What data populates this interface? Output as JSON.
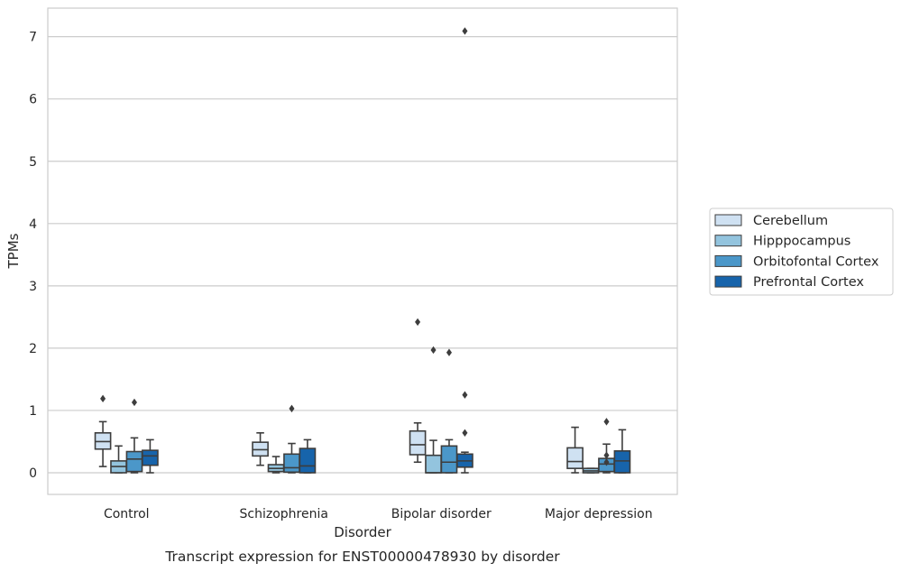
{
  "chart_data": {
    "type": "box",
    "title": "",
    "caption": "Transcript expression for ENST00000478930 by disorder",
    "xlabel": "Disorder",
    "ylabel": "TPMs",
    "ylim": [
      -0.35,
      7.45
    ],
    "yticks": [
      0,
      1,
      2,
      3,
      4,
      5,
      6,
      7
    ],
    "grid": "horizontal",
    "legend_position": "right",
    "categories": [
      "Control",
      "Schizophrenia",
      "Bipolar disorder",
      "Major depression"
    ],
    "series": [
      {
        "name": "Cerebellum",
        "color": "#cfe1f2",
        "boxes": [
          {
            "whisker_low": 0.1,
            "q1": 0.38,
            "median": 0.5,
            "q3": 0.64,
            "whisker_high": 0.82,
            "outliers": [
              1.19
            ]
          },
          {
            "whisker_low": 0.12,
            "q1": 0.27,
            "median": 0.37,
            "q3": 0.49,
            "whisker_high": 0.64,
            "outliers": []
          },
          {
            "whisker_low": 0.17,
            "q1": 0.29,
            "median": 0.45,
            "q3": 0.67,
            "whisker_high": 0.8,
            "outliers": [
              2.42
            ]
          },
          {
            "whisker_low": 0.0,
            "q1": 0.07,
            "median": 0.18,
            "q3": 0.4,
            "whisker_high": 0.73,
            "outliers": []
          }
        ]
      },
      {
        "name": "Hipppocampus",
        "color": "#93c4de",
        "boxes": [
          {
            "whisker_low": 0.0,
            "q1": 0.0,
            "median": 0.1,
            "q3": 0.19,
            "whisker_high": 0.43,
            "outliers": []
          },
          {
            "whisker_low": 0.0,
            "q1": 0.02,
            "median": 0.07,
            "q3": 0.13,
            "whisker_high": 0.26,
            "outliers": []
          },
          {
            "whisker_low": 0.0,
            "q1": 0.0,
            "median": 0.0,
            "q3": 0.28,
            "whisker_high": 0.52,
            "outliers": [
              1.97
            ]
          },
          {
            "whisker_low": 0.0,
            "q1": 0.0,
            "median": 0.03,
            "q3": 0.07,
            "whisker_high": 0.07,
            "outliers": []
          }
        ]
      },
      {
        "name": "Orbitofontal Cortex",
        "color": "#4b97c9",
        "boxes": [
          {
            "whisker_low": 0.0,
            "q1": 0.02,
            "median": 0.22,
            "q3": 0.34,
            "whisker_high": 0.56,
            "outliers": [
              1.13
            ]
          },
          {
            "whisker_low": 0.0,
            "q1": 0.01,
            "median": 0.08,
            "q3": 0.3,
            "whisker_high": 0.47,
            "outliers": [
              1.03
            ]
          },
          {
            "whisker_low": 0.0,
            "q1": 0.0,
            "median": 0.17,
            "q3": 0.43,
            "whisker_high": 0.53,
            "outliers": [
              1.93
            ]
          },
          {
            "whisker_low": 0.0,
            "q1": 0.02,
            "median": 0.14,
            "q3": 0.23,
            "whisker_high": 0.46,
            "outliers": [
              0.28,
              0.17,
              0.82
            ]
          }
        ]
      },
      {
        "name": "Prefrontal Cortex",
        "color": "#1764ab",
        "boxes": [
          {
            "whisker_low": 0.0,
            "q1": 0.12,
            "median": 0.27,
            "q3": 0.36,
            "whisker_high": 0.53,
            "outliers": []
          },
          {
            "whisker_low": 0.0,
            "q1": 0.0,
            "median": 0.11,
            "q3": 0.39,
            "whisker_high": 0.53,
            "outliers": []
          },
          {
            "whisker_low": 0.0,
            "q1": 0.09,
            "median": 0.19,
            "q3": 0.3,
            "whisker_high": 0.33,
            "outliers": [
              7.09,
              1.25,
              0.64
            ]
          },
          {
            "whisker_low": 0.0,
            "q1": 0.0,
            "median": 0.19,
            "q3": 0.35,
            "whisker_high": 0.69,
            "outliers": []
          }
        ]
      }
    ]
  }
}
